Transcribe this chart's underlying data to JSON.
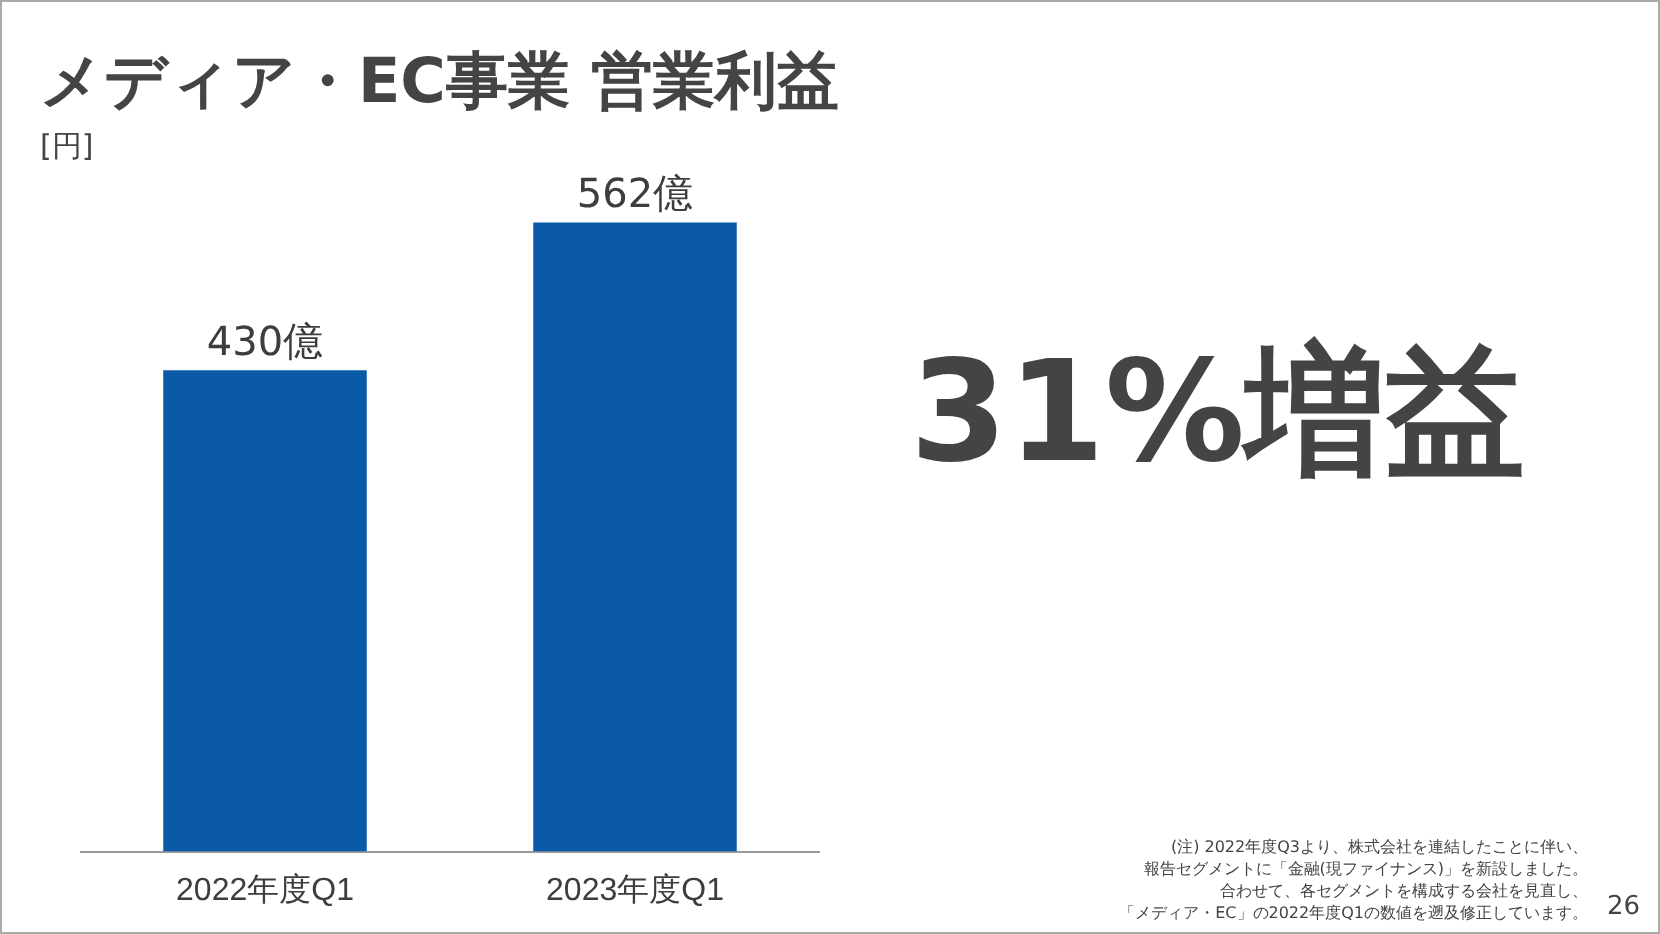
{
  "chart_data": {
    "type": "bar",
    "title": "メディア・EC事業 営業利益",
    "ylabel": "[円]",
    "categories": [
      "2022年度Q1",
      "2023年度Q1"
    ],
    "values": [
      430,
      562
    ],
    "value_labels": [
      "430億",
      "562億"
    ],
    "color": "#0a5aa8",
    "annotations": [
      "31%増益",
      "(注) 2022年度Q3より、株式会社を連結したことに伴い、",
      "報告セグメントに「金融(現ファイナンス)」を新設しました。",
      "合わせて、各セグメントを構成する会社を見直し、",
      "「メディア・EC」の2022年度Q1の数値を遡及修正しています。",
      "26"
    ]
  }
}
